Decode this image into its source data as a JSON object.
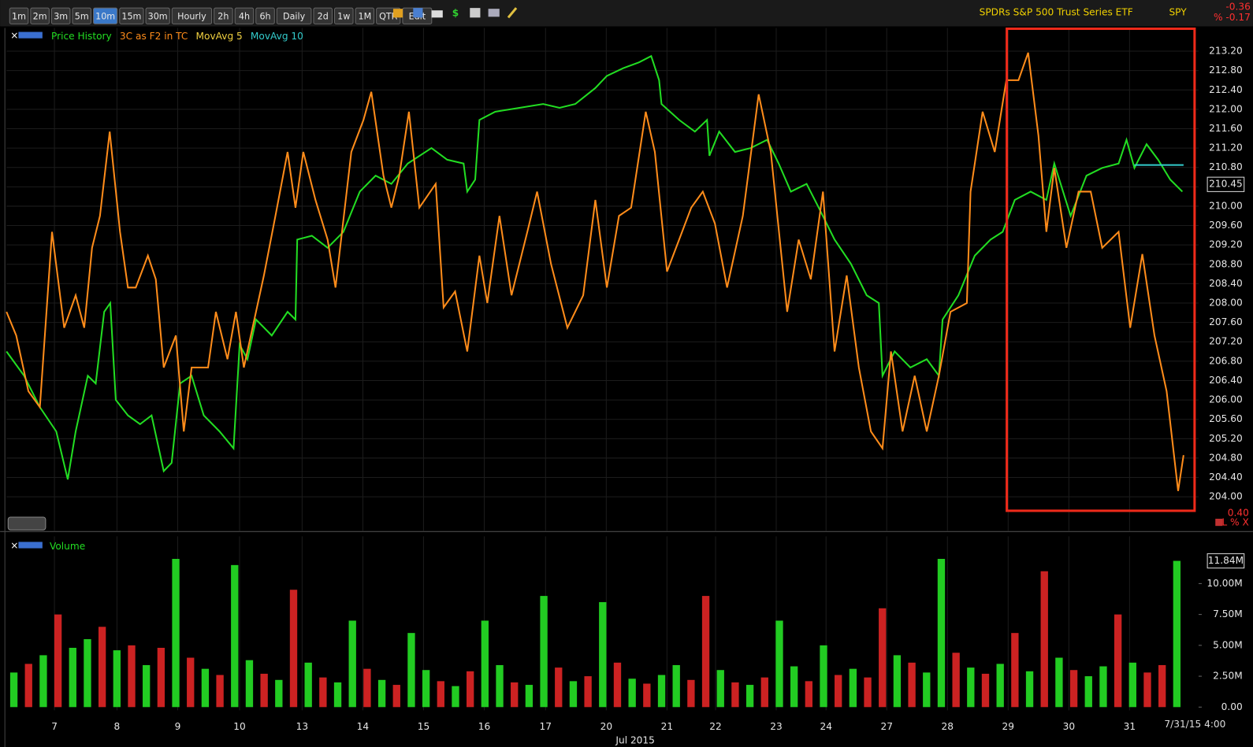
{
  "toolbar": {
    "buttons": [
      "1m",
      "2m",
      "3m",
      "5m",
      "10m",
      "15m",
      "30m",
      "Hourly",
      "2h",
      "4h",
      "6h",
      "Daily",
      "2d",
      "1w",
      "1M",
      "QTR",
      "Edit"
    ],
    "active_index": 4
  },
  "header": {
    "description": "SPDRs S&P 500 Trust Series ETF",
    "symbol": "SPY",
    "change": "-0.36",
    "change_pct": "% -0.17",
    "scale_label": "0.40",
    "corner_controls": "L % X",
    "date_stamp": "7/31/15 4:00"
  },
  "chart_data": [
    {
      "type": "line",
      "legend_items": [
        {
          "name": "Price History",
          "color": "#22dd22"
        },
        {
          "name": "3C as F2 in TC",
          "color": "#ff8c1a"
        },
        {
          "name": "MovAvg 5",
          "color": "#f0d040"
        },
        {
          "name": "MovAvg 10",
          "color": "#33cccc"
        }
      ],
      "xlim": [
        0,
        19.4
      ],
      "x_axis_title": "Jul 2015",
      "xticks": [
        {
          "value": 0.79,
          "label": "7"
        },
        {
          "value": 1.82,
          "label": "8"
        },
        {
          "value": 2.82,
          "label": "9"
        },
        {
          "value": 3.84,
          "label": "10"
        },
        {
          "value": 4.87,
          "label": "13"
        },
        {
          "value": 5.87,
          "label": "14"
        },
        {
          "value": 6.87,
          "label": "15"
        },
        {
          "value": 7.87,
          "label": "16"
        },
        {
          "value": 8.88,
          "label": "17"
        },
        {
          "value": 9.88,
          "label": "20"
        },
        {
          "value": 10.88,
          "label": "21"
        },
        {
          "value": 11.68,
          "label": "22"
        },
        {
          "value": 12.68,
          "label": "23"
        },
        {
          "value": 13.5,
          "label": "24"
        },
        {
          "value": 14.5,
          "label": "27"
        },
        {
          "value": 15.5,
          "label": "28"
        },
        {
          "value": 16.5,
          "label": "29"
        },
        {
          "value": 17.5,
          "label": "30"
        },
        {
          "value": 18.5,
          "label": "31"
        }
      ],
      "ylim": [
        203.3,
        213.68
      ],
      "yticks": [
        {
          "value": 204,
          "label": "204.00"
        },
        {
          "value": 204.4,
          "label": "204.40"
        },
        {
          "value": 204.8,
          "label": "204.80"
        },
        {
          "value": 205.2,
          "label": "205.20"
        },
        {
          "value": 205.6,
          "label": "205.60"
        },
        {
          "value": 206,
          "label": "206.00"
        },
        {
          "value": 206.4,
          "label": "206.40"
        },
        {
          "value": 206.8,
          "label": "206.80"
        },
        {
          "value": 207.2,
          "label": "207.20"
        },
        {
          "value": 207.6,
          "label": "207.60"
        },
        {
          "value": 208,
          "label": "208.00"
        },
        {
          "value": 208.4,
          "label": "208.40"
        },
        {
          "value": 208.8,
          "label": "208.80"
        },
        {
          "value": 209.2,
          "label": "209.20"
        },
        {
          "value": 209.6,
          "label": "209.60"
        },
        {
          "value": 210,
          "label": "210.00"
        },
        {
          "value": 210.4,
          "label": "210.40"
        },
        {
          "value": 210.8,
          "label": "210.80"
        },
        {
          "value": 211.2,
          "label": "211.20"
        },
        {
          "value": 211.6,
          "label": "211.60"
        },
        {
          "value": 212,
          "label": "212.00"
        },
        {
          "value": 212.4,
          "label": "212.40"
        },
        {
          "value": 212.8,
          "label": "212.80"
        },
        {
          "value": 213.2,
          "label": "213.20"
        }
      ],
      "grid": true,
      "last_price": 210.45,
      "series": [
        {
          "color": "#22dd22",
          "x": [
            0,
            0.29,
            0.55,
            0.82,
            1.01,
            1.14,
            1.34,
            1.47,
            1.61,
            1.71,
            1.8,
            2.0,
            2.2,
            2.39,
            2.59,
            2.72,
            2.86,
            3.05,
            3.25,
            3.51,
            3.74,
            3.84,
            3.97,
            4.11,
            4.37,
            4.63,
            4.76,
            4.79,
            5.03,
            5.29,
            5.55,
            5.82,
            6.08,
            6.34,
            6.61,
            7.0,
            7.26,
            7.53,
            7.59,
            7.72,
            7.79,
            8.05,
            8.45,
            8.84,
            9.11,
            9.37,
            9.7,
            9.89,
            10.16,
            10.42,
            10.62,
            10.75,
            10.79,
            11.08,
            11.34,
            11.54,
            11.58,
            11.74,
            12.0,
            12.26,
            12.53,
            12.72,
            12.92,
            13.18,
            13.38,
            13.64,
            13.91,
            14.17,
            14.37,
            14.43,
            14.63,
            14.89,
            15.16,
            15.36,
            15.42,
            15.68,
            15.95,
            16.21,
            16.41,
            16.61,
            16.87,
            17.13,
            17.26,
            17.53,
            17.79,
            18.05,
            18.32,
            18.45,
            18.58,
            18.78,
            18.97,
            19.17,
            19.37
          ],
          "values": [
            207.0,
            206.5,
            205.85,
            205.35,
            204.36,
            205.35,
            206.5,
            206.34,
            207.82,
            208.0,
            206.0,
            205.68,
            205.5,
            205.68,
            204.53,
            204.7,
            206.34,
            206.5,
            205.68,
            205.35,
            205.0,
            207.14,
            206.84,
            207.66,
            207.33,
            207.82,
            207.66,
            209.31,
            209.39,
            209.14,
            209.47,
            210.3,
            210.63,
            210.46,
            210.88,
            211.2,
            210.96,
            210.88,
            210.3,
            210.55,
            211.78,
            211.95,
            212.03,
            212.11,
            212.03,
            212.11,
            212.44,
            212.69,
            212.85,
            212.97,
            213.1,
            212.6,
            212.11,
            211.78,
            211.54,
            211.78,
            211.04,
            211.54,
            211.12,
            211.2,
            211.37,
            210.88,
            210.3,
            210.46,
            209.97,
            209.31,
            208.81,
            208.16,
            208.0,
            206.5,
            207.0,
            206.67,
            206.84,
            206.5,
            207.66,
            208.16,
            208.98,
            209.31,
            209.47,
            210.13,
            210.3,
            210.13,
            210.88,
            209.8,
            210.63,
            210.79,
            210.88,
            211.37,
            210.79,
            211.28,
            210.96,
            210.55,
            210.3
          ]
        },
        {
          "color": "#ff8c1a",
          "x": [
            0,
            0.16,
            0.36,
            0.55,
            0.75,
            0.95,
            1.14,
            1.28,
            1.41,
            1.54,
            1.7,
            1.87,
            2.0,
            2.13,
            2.33,
            2.46,
            2.59,
            2.79,
            2.92,
            3.05,
            3.32,
            3.45,
            3.64,
            3.78,
            3.91,
            4.11,
            4.24,
            4.43,
            4.63,
            4.76,
            4.89,
            5.09,
            5.29,
            5.42,
            5.68,
            5.88,
            6.01,
            6.21,
            6.34,
            6.47,
            6.63,
            6.8,
            7.07,
            7.2,
            7.39,
            7.59,
            7.79,
            7.92,
            8.12,
            8.32,
            8.58,
            8.74,
            8.97,
            9.24,
            9.5,
            9.7,
            9.89,
            10.09,
            10.29,
            10.53,
            10.68,
            10.88,
            11.08,
            11.28,
            11.47,
            11.67,
            11.87,
            12.13,
            12.39,
            12.59,
            12.86,
            13.05,
            13.25,
            13.45,
            13.64,
            13.84,
            14.04,
            14.24,
            14.43,
            14.57,
            14.76,
            14.96,
            15.16,
            15.36,
            15.55,
            15.82,
            15.88,
            16.08,
            16.28,
            16.47,
            16.67,
            16.83,
            17.0,
            17.13,
            17.26,
            17.46,
            17.66,
            17.86,
            18.05,
            18.32,
            18.51,
            18.71,
            18.91,
            19.11,
            19.3,
            19.39
          ],
          "values": [
            207.82,
            207.33,
            206.18,
            205.85,
            209.47,
            207.49,
            208.16,
            207.49,
            209.14,
            209.8,
            211.54,
            209.47,
            208.32,
            208.32,
            208.98,
            208.49,
            206.67,
            207.33,
            205.35,
            206.67,
            206.67,
            207.82,
            206.84,
            207.82,
            206.67,
            207.82,
            208.57,
            209.8,
            211.12,
            209.97,
            211.12,
            210.13,
            209.31,
            208.32,
            211.12,
            211.78,
            212.36,
            210.63,
            209.97,
            210.63,
            211.95,
            209.97,
            210.46,
            207.91,
            208.24,
            207.0,
            208.98,
            208.0,
            209.8,
            208.16,
            209.47,
            210.3,
            208.81,
            207.49,
            208.16,
            210.13,
            208.32,
            209.8,
            209.97,
            211.95,
            211.12,
            208.65,
            209.31,
            209.97,
            210.3,
            209.64,
            208.32,
            209.8,
            212.31,
            211.12,
            207.82,
            209.31,
            208.49,
            210.3,
            207.0,
            208.57,
            206.67,
            205.35,
            205.0,
            207.0,
            205.35,
            206.5,
            205.35,
            206.5,
            207.82,
            208.0,
            210.3,
            211.95,
            211.12,
            212.6,
            212.6,
            213.17,
            211.45,
            209.47,
            210.79,
            209.14,
            210.3,
            210.3,
            209.14,
            209.47,
            207.49,
            209.01,
            207.33,
            206.18,
            204.12,
            204.86
          ]
        },
        {
          "color": "#33cccc",
          "x": [
            18.58,
            19.39
          ],
          "values": [
            210.85,
            210.85
          ]
        }
      ]
    },
    {
      "type": "bar",
      "title": "Volume",
      "ylim": [
        0,
        12.6
      ],
      "yticks": [
        {
          "value": 0,
          "label": "0.00"
        },
        {
          "value": 2.5,
          "label": "2.50M"
        },
        {
          "value": 5,
          "label": "5.00M"
        },
        {
          "value": 7.5,
          "label": "7.50M"
        },
        {
          "value": 10,
          "label": "10.00M"
        }
      ],
      "last_value": {
        "value": 11.84,
        "label": "11.84M"
      },
      "values": [
        2.8,
        3.5,
        4.2,
        7.5,
        4.8,
        5.5,
        6.5,
        4.6,
        5.0,
        3.4,
        4.8,
        12.0,
        4.0,
        3.1,
        2.6,
        11.5,
        3.8,
        2.7,
        2.2,
        9.5,
        3.6,
        2.4,
        2.0,
        7.0,
        3.1,
        2.2,
        1.8,
        6.0,
        3.0,
        2.1,
        1.7,
        2.9,
        7.0,
        3.4,
        2.0,
        1.8,
        9.0,
        3.2,
        2.1,
        2.5,
        8.5,
        3.6,
        2.3,
        1.9,
        2.6,
        3.4,
        2.2,
        9.0,
        3.0,
        2.0,
        1.8,
        2.4,
        7.0,
        3.3,
        2.1,
        5.0,
        2.6,
        3.1,
        2.4,
        8.0,
        4.2,
        3.6,
        2.8,
        12.0,
        4.4,
        3.2,
        2.7,
        3.5,
        6.0,
        2.9,
        11.0,
        4.0,
        3.0,
        2.5,
        3.3,
        7.5,
        3.6,
        2.8,
        3.4,
        11.84
      ],
      "colors": [
        "#22cc22",
        "#cc2222",
        "#22cc22",
        "#cc2222",
        "#22cc22",
        "#22cc22",
        "#cc2222",
        "#22cc22",
        "#cc2222",
        "#22cc22",
        "#cc2222",
        "#22cc22",
        "#cc2222",
        "#22cc22",
        "#cc2222",
        "#22cc22",
        "#22cc22",
        "#cc2222",
        "#22cc22",
        "#cc2222",
        "#22cc22",
        "#cc2222",
        "#22cc22",
        "#22cc22",
        "#cc2222",
        "#22cc22",
        "#cc2222",
        "#22cc22",
        "#22cc22",
        "#cc2222",
        "#22cc22",
        "#cc2222",
        "#22cc22",
        "#22cc22",
        "#cc2222",
        "#22cc22",
        "#22cc22",
        "#cc2222",
        "#22cc22",
        "#cc2222",
        "#22cc22",
        "#cc2222",
        "#22cc22",
        "#cc2222",
        "#22cc22",
        "#22cc22",
        "#cc2222",
        "#cc2222",
        "#22cc22",
        "#cc2222",
        "#22cc22",
        "#cc2222",
        "#22cc22",
        "#22cc22",
        "#cc2222",
        "#22cc22",
        "#cc2222",
        "#22cc22",
        "#cc2222",
        "#cc2222",
        "#22cc22",
        "#cc2222",
        "#22cc22",
        "#22cc22",
        "#cc2222",
        "#22cc22",
        "#cc2222",
        "#22cc22",
        "#cc2222",
        "#22cc22",
        "#cc2222",
        "#22cc22",
        "#cc2222",
        "#22cc22",
        "#22cc22",
        "#cc2222",
        "#22cc22",
        "#cc2222",
        "#cc2222",
        "#22cc22"
      ]
    }
  ]
}
